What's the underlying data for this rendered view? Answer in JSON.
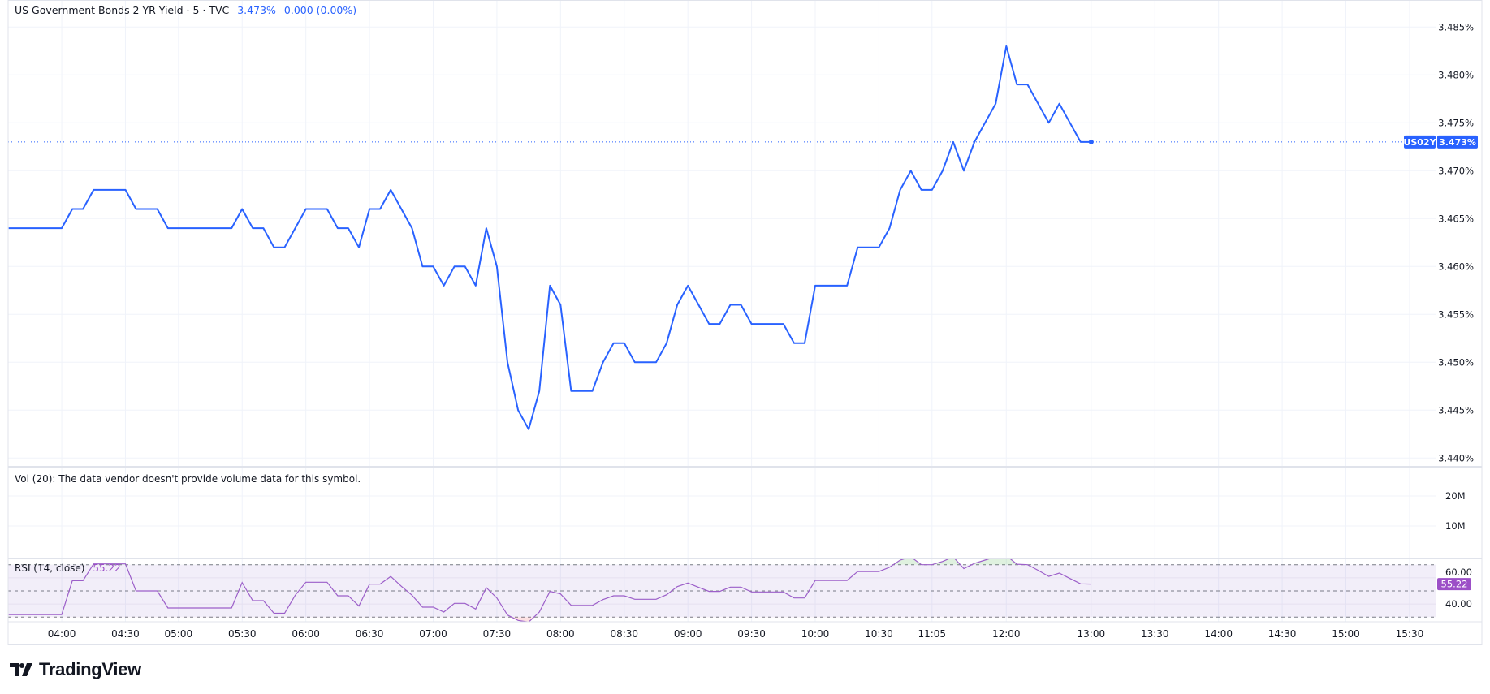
{
  "header": {
    "symbol_title": "US Government Bonds 2 YR Yield · 5 · TVC",
    "last": "3.473%",
    "change": "0.000 (0.00%)"
  },
  "volume": {
    "label": "Vol (20): The data vendor doesn't provide volume data for this symbol.",
    "ticks": [
      {
        "value": 20000000,
        "label": "20M"
      },
      {
        "value": 10000000,
        "label": "10M"
      }
    ]
  },
  "rsi": {
    "label": "RSI (14, close)",
    "value": "55.22",
    "ticks": [
      {
        "value": 60,
        "label": "60.00"
      },
      {
        "value": 40,
        "label": "40.00"
      }
    ],
    "bands": {
      "upper": 70,
      "middle": 50,
      "lower": 30
    }
  },
  "price_badge": {
    "symbol": "US02Y",
    "value": "3.473%",
    "price": 3.473
  },
  "logo": {
    "text": "TradingView"
  },
  "colors": {
    "price_line": "#2962ff",
    "rsi_line": "#9c5fc9",
    "rsi_badge": "#9c4fc7",
    "badge": "#2962ff",
    "grid": "#f0f3fa"
  },
  "chart_data": {
    "type": "line",
    "title": "US Government Bonds 2 YR Yield · 5 · TVC",
    "ylim": [
      3.4375,
      3.4875
    ],
    "y_ticks": [
      {
        "value": 3.485,
        "label": "3.485%"
      },
      {
        "value": 3.48,
        "label": "3.480%"
      },
      {
        "value": 3.475,
        "label": "3.475%"
      },
      {
        "value": 3.47,
        "label": "3.470%"
      },
      {
        "value": 3.465,
        "label": "3.465%"
      },
      {
        "value": 3.46,
        "label": "3.460%"
      },
      {
        "value": 3.455,
        "label": "3.455%"
      },
      {
        "value": 3.45,
        "label": "3.450%"
      },
      {
        "value": 3.445,
        "label": "3.445%"
      },
      {
        "value": 3.44,
        "label": "3.440%"
      }
    ],
    "x_ticks": [
      {
        "bar": 5,
        "label": "04:00"
      },
      {
        "bar": 11,
        "label": "04:30"
      },
      {
        "bar": 16,
        "label": "05:00"
      },
      {
        "bar": 22,
        "label": "05:30"
      },
      {
        "bar": 28,
        "label": "06:00"
      },
      {
        "bar": 34,
        "label": "06:30"
      },
      {
        "bar": 40,
        "label": "07:00"
      },
      {
        "bar": 46,
        "label": "07:30"
      },
      {
        "bar": 52,
        "label": "08:00"
      },
      {
        "bar": 58,
        "label": "08:30"
      },
      {
        "bar": 64,
        "label": "09:00"
      },
      {
        "bar": 70,
        "label": "09:30"
      },
      {
        "bar": 76,
        "label": "10:00"
      },
      {
        "bar": 82,
        "label": "10:30"
      },
      {
        "bar": 87,
        "label": "11:05"
      },
      {
        "bar": 94,
        "label": "12:00"
      },
      {
        "bar": 102,
        "label": "13:00"
      },
      {
        "bar": 108,
        "label": "13:30"
      },
      {
        "bar": 114,
        "label": "14:00"
      },
      {
        "bar": 120,
        "label": "14:30"
      },
      {
        "bar": 126,
        "label": "15:00"
      },
      {
        "bar": 132,
        "label": "15:30"
      }
    ],
    "series": [
      {
        "name": "US02Y",
        "values": [
          3.464,
          3.464,
          3.464,
          3.464,
          3.464,
          3.464,
          3.466,
          3.466,
          3.468,
          3.468,
          3.468,
          3.468,
          3.466,
          3.466,
          3.466,
          3.464,
          3.464,
          3.464,
          3.464,
          3.464,
          3.464,
          3.464,
          3.466,
          3.464,
          3.464,
          3.462,
          3.462,
          3.464,
          3.466,
          3.466,
          3.466,
          3.464,
          3.464,
          3.462,
          3.466,
          3.466,
          3.468,
          3.466,
          3.464,
          3.46,
          3.46,
          3.458,
          3.46,
          3.46,
          3.458,
          3.464,
          3.46,
          3.45,
          3.445,
          3.443,
          3.447,
          3.458,
          3.456,
          3.447,
          3.447,
          3.447,
          3.45,
          3.452,
          3.452,
          3.45,
          3.45,
          3.45,
          3.452,
          3.456,
          3.458,
          3.456,
          3.454,
          3.454,
          3.456,
          3.456,
          3.454,
          3.454,
          3.454,
          3.454,
          3.452,
          3.452,
          3.458,
          3.458,
          3.458,
          3.458,
          3.462,
          3.462,
          3.462,
          3.464,
          3.468,
          3.47,
          3.468,
          3.468,
          3.47,
          3.473,
          3.47,
          3.473,
          3.475,
          3.477,
          3.483,
          3.479,
          3.479,
          3.477,
          3.475,
          3.477,
          3.475,
          3.473,
          3.473
        ]
      },
      {
        "name": "RSI (14, close)",
        "range": [
          0,
          100
        ],
        "values": [
          31.9,
          31.9,
          31.9,
          31.9,
          31.9,
          31.9,
          57.8,
          57.8,
          70.6,
          70.6,
          70.6,
          70.6,
          50,
          50,
          50,
          37,
          37,
          37,
          37,
          37,
          37,
          37,
          56.4,
          42.6,
          42.6,
          33,
          33,
          46.7,
          56.6,
          56.6,
          56.6,
          46.3,
          46.3,
          38.5,
          55.2,
          55.2,
          61.1,
          53.5,
          46.7,
          37.6,
          37.6,
          33.9,
          40.5,
          40.5,
          36.2,
          52.5,
          44.6,
          31.6,
          27.5,
          26.3,
          33.9,
          49.6,
          47.7,
          39,
          39,
          39,
          43.4,
          46.3,
          46.3,
          43.6,
          43.6,
          43.6,
          47.1,
          53.3,
          56,
          52.7,
          49.6,
          49.6,
          52.9,
          52.9,
          49.2,
          49.2,
          49.2,
          49.2,
          44.6,
          44.6,
          58,
          58,
          58,
          58,
          64.8,
          64.8,
          64.8,
          68,
          73.5,
          76,
          70,
          70,
          72.5,
          76,
          67,
          71,
          73.5,
          76,
          77,
          70.4,
          70,
          65.7,
          61.1,
          63.6,
          59.5,
          55.4,
          55.22
        ]
      }
    ],
    "grid": true,
    "legend": "top-left"
  }
}
